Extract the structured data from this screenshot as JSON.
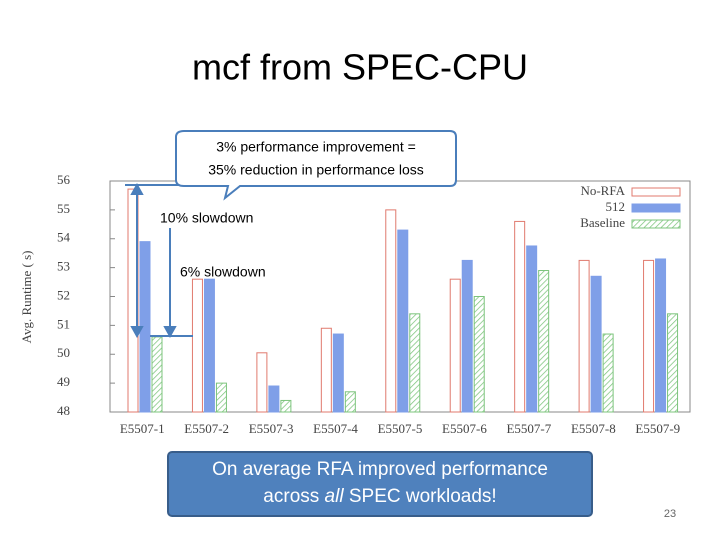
{
  "slide": {
    "number": "23"
  },
  "chart_data": {
    "type": "bar",
    "title": "mcf from SPEC-CPU",
    "y_label": "Avg. Runtime ( s)",
    "categories": [
      "E5507-1",
      "E5507-2",
      "E5507-3",
      "E5507-4",
      "E5507-5",
      "E5507-6",
      "E5507-7",
      "E5507-8",
      "E5507-9"
    ],
    "series": [
      {
        "name": "No-RFA",
        "color": "#e07a6e",
        "values": [
          55.72,
          52.6,
          50.05,
          50.9,
          55.0,
          52.6,
          54.6,
          53.25,
          53.25
        ]
      },
      {
        "name": "512",
        "color": "#7f9fe8",
        "values": [
          53.9,
          52.6,
          48.9,
          50.7,
          54.3,
          53.25,
          53.75,
          52.7,
          53.3
        ]
      },
      {
        "name": "Baseline",
        "color": "#7cc47c",
        "values": [
          50.6,
          49.0,
          48.4,
          48.7,
          51.4,
          52.0,
          52.9,
          50.7,
          51.4
        ]
      }
    ],
    "ylim": [
      48,
      56
    ],
    "yticks": [
      48,
      49,
      50,
      51,
      52,
      53,
      54,
      55,
      56
    ],
    "grid": false,
    "legend": "top-right"
  },
  "annotations": {
    "callout": [
      "3% performance improvement =",
      "35% reduction in performance loss"
    ],
    "slowdown_10": "10% slowdown",
    "slowdown_6": "6% slowdown",
    "summary": [
      "On average RFA improved performance",
      "across",
      "all",
      "SPEC workloads!"
    ]
  }
}
